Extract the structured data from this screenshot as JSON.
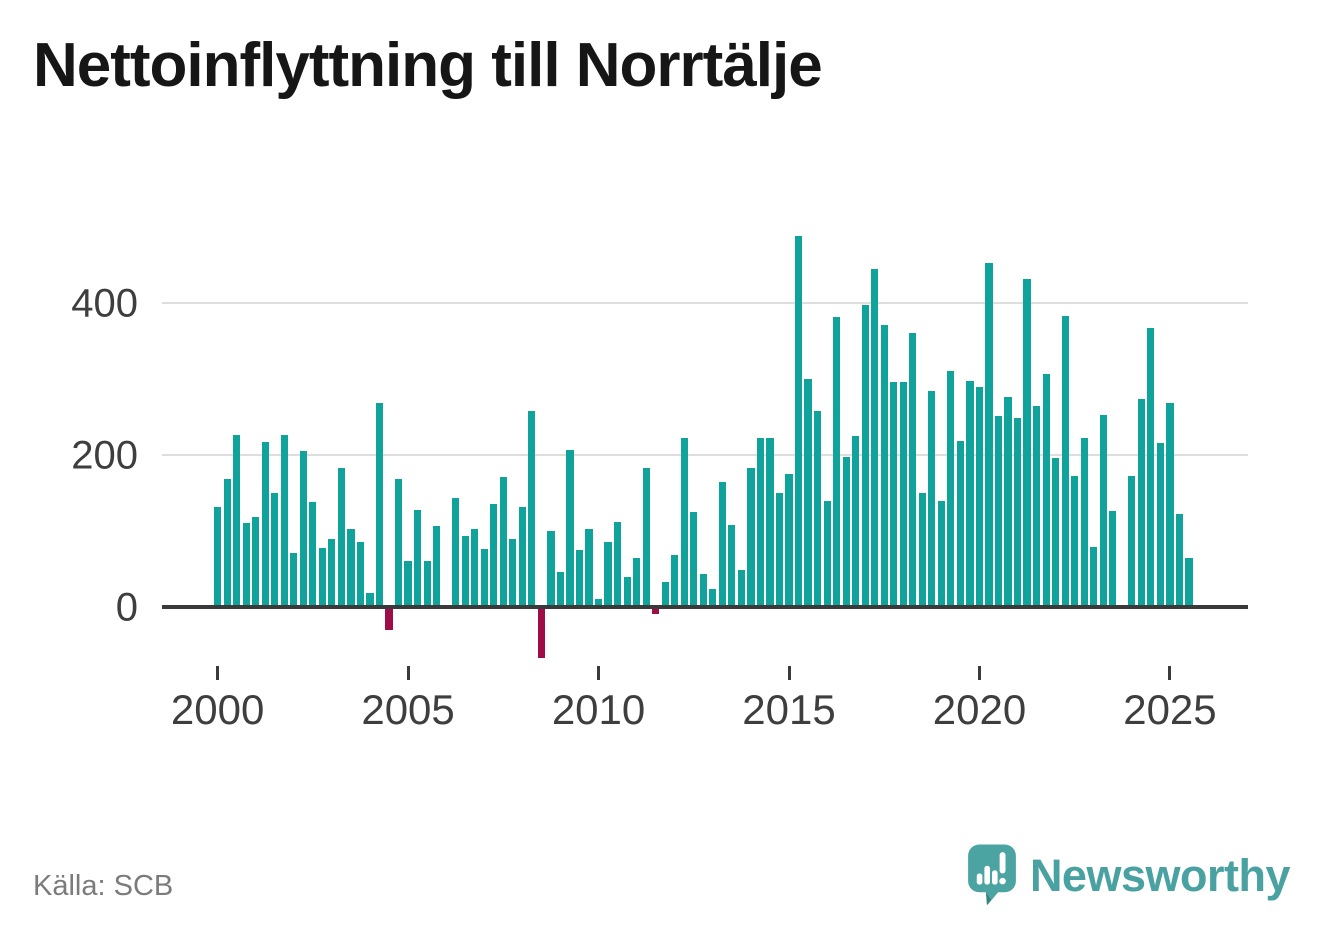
{
  "title": "Nettoinflyttning till Norrtälje",
  "source_label": "Källa: SCB",
  "branding": {
    "name": "Newsworthy",
    "icon": "speech-bubble-bar-chart-icon",
    "brand_color": "#49a1a2"
  },
  "colors": {
    "bar_positive": "#0fa39b",
    "bar_negative": "#a00c46",
    "axis_line": "#3a3a3a",
    "gridline": "#dedede",
    "title_text": "#161616",
    "tick_label": "#3e3e3e",
    "source_text": "#7b7b7b"
  },
  "chart_data": {
    "type": "bar",
    "title": "Nettoinflyttning till Norrtälje",
    "x_unit": "quarter",
    "x_start": "2000Q1",
    "x_end": "2025Q3",
    "values": [
      132,
      168,
      226,
      111,
      118,
      217,
      150,
      226,
      71,
      205,
      138,
      78,
      89,
      183,
      102,
      85,
      19,
      268,
      -27,
      168,
      61,
      128,
      60,
      106,
      0,
      144,
      93,
      103,
      76,
      136,
      171,
      89,
      132,
      258,
      -65,
      100,
      46,
      206,
      75,
      102,
      11,
      85,
      112,
      40,
      65,
      183,
      -7,
      33,
      68,
      223,
      125,
      44,
      24,
      165,
      108,
      49,
      183,
      222,
      222,
      150,
      175,
      488,
      300,
      258,
      139,
      381,
      197,
      225,
      397,
      445,
      371,
      296,
      296,
      360,
      150,
      284,
      140,
      310,
      218,
      297,
      289,
      453,
      251,
      276,
      249,
      431,
      264,
      306,
      196,
      383,
      173,
      222,
      79,
      252,
      126,
      0,
      173,
      274,
      367,
      216,
      268,
      122,
      65
    ],
    "xticklabels": [
      "2000",
      "2005",
      "2010",
      "2015",
      "2020",
      "2025"
    ],
    "yticks": [
      0,
      200,
      400
    ],
    "ylim": [
      -90,
      510
    ],
    "grid": "horizontal-at-200-and-400",
    "legend": "none",
    "note": "positive quarters teal, negative quarters dark red"
  }
}
